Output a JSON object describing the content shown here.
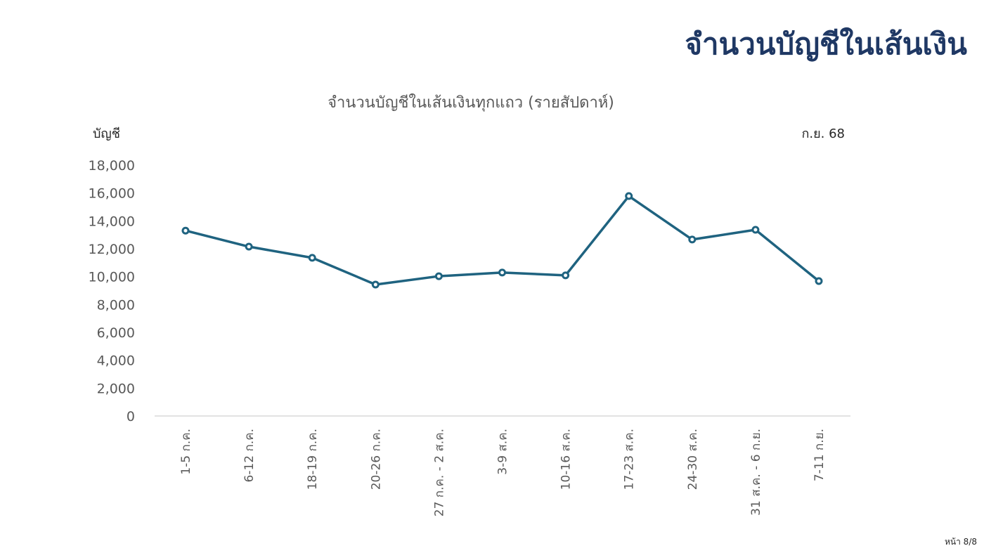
{
  "page": {
    "title": "จำนวนบัญชีในเส้นเงิน",
    "page_number": "หน้า 8/8"
  },
  "chart": {
    "title": "จำนวนบัญชีในเส้นเงินทุกแถว (รายสัปดาห์)",
    "y_unit": "บัญชี",
    "period": "ก.ย. 68",
    "line_color": "#1f6380",
    "axis_color": "#d9d9d9"
  },
  "chart_data": {
    "type": "line",
    "title": "จำนวนบัญชีในเส้นเงินทุกแถว (รายสัปดาห์)",
    "xlabel": "",
    "ylabel": "บัญชี",
    "annotation": "ก.ย. 68",
    "ylim": [
      0,
      18000
    ],
    "yticks": [
      "0",
      "2,000",
      "4,000",
      "6,000",
      "8,000",
      "10,000",
      "12,000",
      "14,000",
      "16,000",
      "18,000"
    ],
    "grid": false,
    "legend": "none",
    "categories": [
      "1-5 ก.ค.",
      "6-12 ก.ค.",
      "18-19 ก.ค.",
      "20-26 ก.ค.",
      "27 ก.ค. - 2 ส.ค.",
      "3-9 ส.ค.",
      "10-16 ส.ค.",
      "17-23 ส.ค.",
      "24-30 ส.ค.",
      "31 ส.ค. - 6 ก.ย.",
      "7-11 ก.ย."
    ],
    "series": [
      {
        "name": "จำนวนบัญชี",
        "values": [
          13300,
          12150,
          11350,
          9430,
          10030,
          10290,
          10090,
          15780,
          12660,
          13360,
          9680
        ]
      }
    ]
  }
}
